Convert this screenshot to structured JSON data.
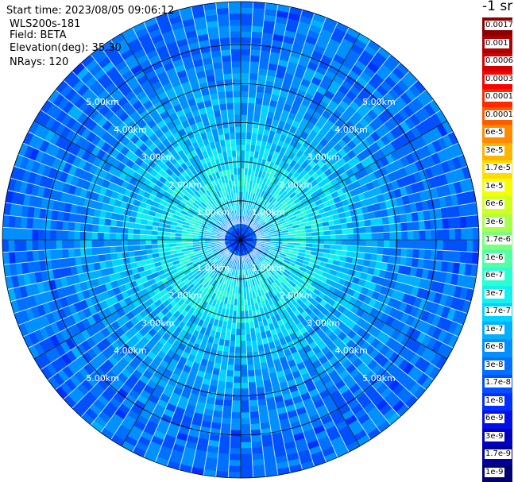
{
  "header": {
    "start_time": "Start time: 2023/08/05 09:06:12",
    "site": "WLS200s-181",
    "field": "Field: BETA",
    "elevation": "Elevation(deg): 35.30",
    "nrays": "NRays: 120"
  },
  "colorbar": {
    "unit": "-1 sr",
    "levels": [
      {
        "label": "0.0017",
        "color": "#8b0000"
      },
      {
        "label": "0.001",
        "color": "#b00000"
      },
      {
        "label": "0.0006",
        "color": "#d60000"
      },
      {
        "label": "0.0003",
        "color": "#ff0000"
      },
      {
        "label": "0.00017",
        "color": "#ff2a00"
      },
      {
        "label": "0.0001",
        "color": "#ff5a00"
      },
      {
        "label": "6e-5",
        "color": "#ff8a00"
      },
      {
        "label": "3e-5",
        "color": "#ffb400"
      },
      {
        "label": "1.7e-5",
        "color": "#ffdc00"
      },
      {
        "label": "1e-5",
        "color": "#f6ff00"
      },
      {
        "label": "6e-6",
        "color": "#d2ff1e"
      },
      {
        "label": "3e-6",
        "color": "#a8ff4c"
      },
      {
        "label": "1.7e-6",
        "color": "#7cff7c"
      },
      {
        "label": "1e-6",
        "color": "#52ffa6"
      },
      {
        "label": "6e-7",
        "color": "#2affd2"
      },
      {
        "label": "3e-7",
        "color": "#12f0f0"
      },
      {
        "label": "1.7e-7",
        "color": "#00d4ff"
      },
      {
        "label": "1e-7",
        "color": "#00b0ff"
      },
      {
        "label": "6e-8",
        "color": "#0090ff"
      },
      {
        "label": "3e-8",
        "color": "#0070ff"
      },
      {
        "label": "1.7e-8",
        "color": "#0050ff"
      },
      {
        "label": "1e-8",
        "color": "#0030ff"
      },
      {
        "label": "6e-9",
        "color": "#0010e6"
      },
      {
        "label": "3e-9",
        "color": "#0000c0"
      },
      {
        "label": "1.7e-9",
        "color": "#00009a"
      },
      {
        "label": "1e-9",
        "color": "#000070"
      }
    ]
  },
  "chart_data": {
    "type": "heatmap",
    "projection": "polar PPI",
    "field": "BETA",
    "nrays": 120,
    "range_max_km": 6.1,
    "range_ring_labels": [
      "1.00km",
      "2.00km",
      "3.00km",
      "4.00km",
      "5.00km"
    ],
    "range_ring_km": [
      1,
      2,
      3,
      4,
      5
    ],
    "azimuth_spokes_deg": [
      0,
      30,
      60,
      90,
      120,
      150,
      180,
      210,
      240,
      270,
      300,
      330
    ],
    "radial_profile_index": [
      {
        "range_km": 0.0,
        "level_index": 22
      },
      {
        "range_km": 0.3,
        "level_index": 20
      },
      {
        "range_km": 0.8,
        "level_index": 16
      },
      {
        "range_km": 1.5,
        "level_index": 15
      },
      {
        "range_km": 2.2,
        "level_index": 16
      },
      {
        "range_km": 3.0,
        "level_index": 17
      },
      {
        "range_km": 4.0,
        "level_index": 18
      },
      {
        "range_km": 5.0,
        "level_index": 19
      },
      {
        "range_km": 6.1,
        "level_index": 19
      }
    ],
    "grid": true
  }
}
